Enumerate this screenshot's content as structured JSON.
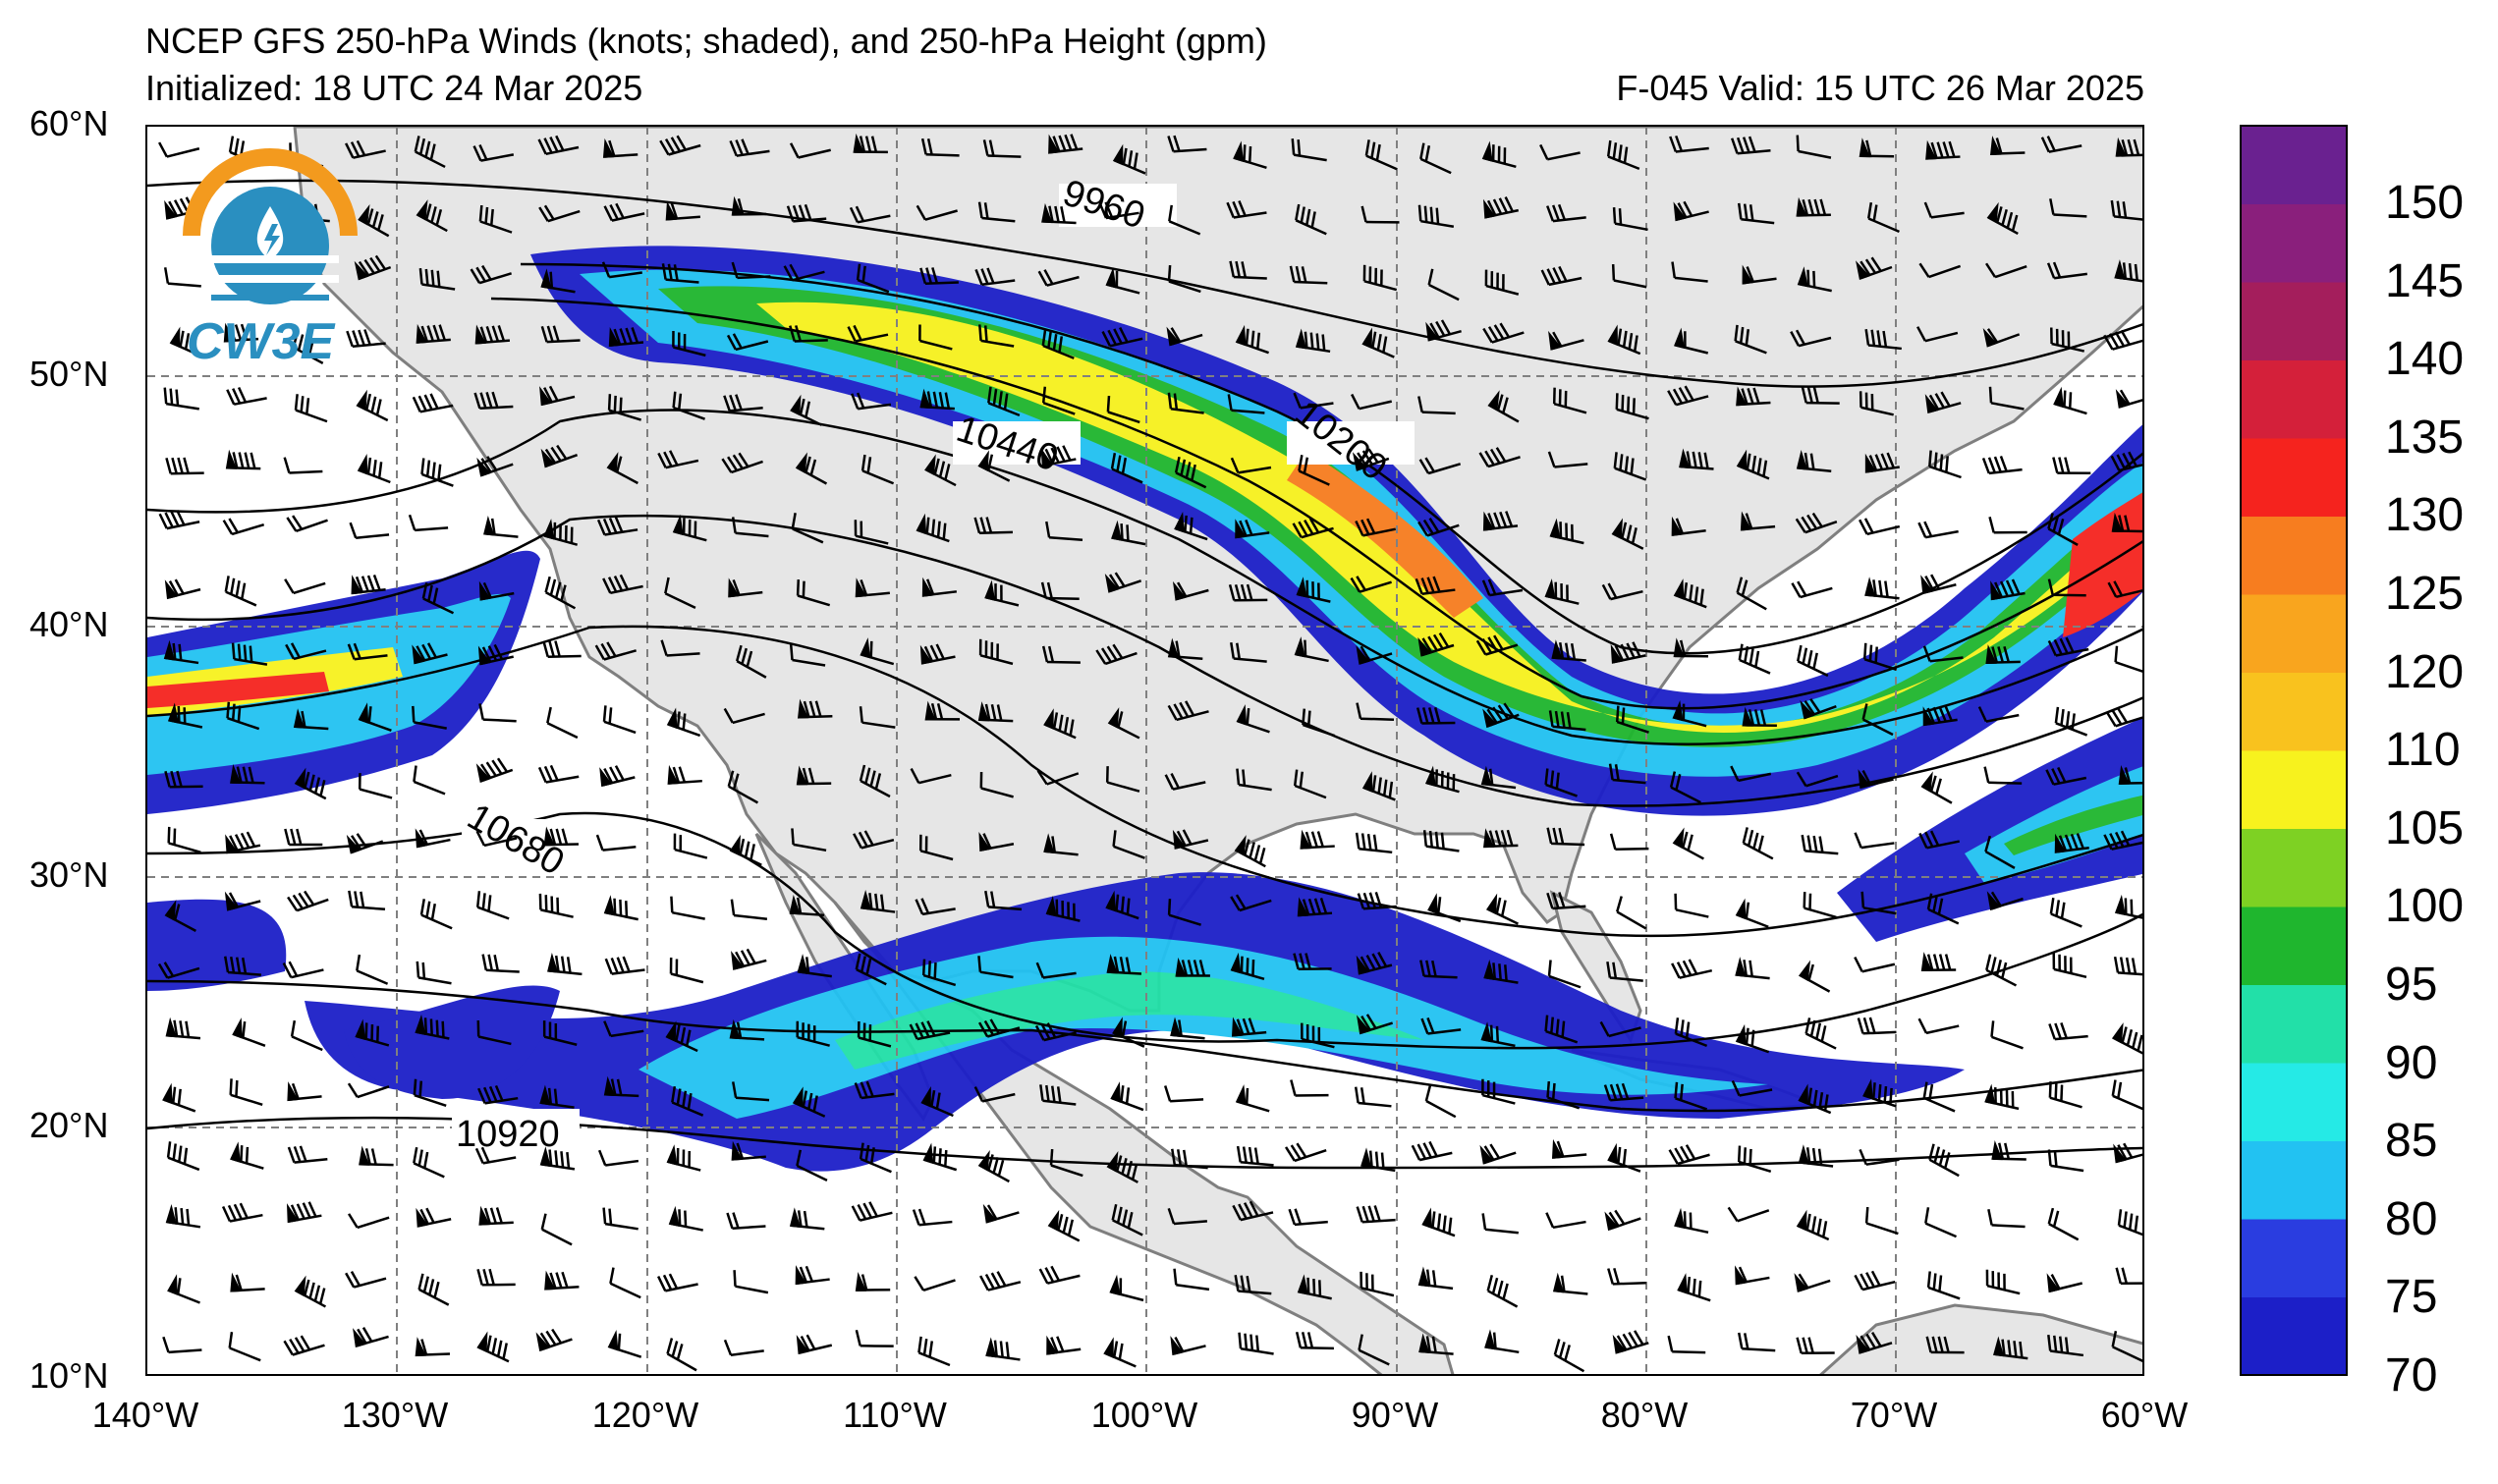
{
  "header": {
    "title": "NCEP GFS 250-hPa Winds (knots; shaded), and 250-hPa Height (gpm)",
    "initialized": "Initialized: 18 UTC 24 Mar 2025",
    "valid": "F-045  Valid: 15 UTC 26 Mar 2025"
  },
  "logo": {
    "text": "CW3E",
    "icon": "water-drop-lightning-icon"
  },
  "axes": {
    "lat_labels": [
      "60°N",
      "50°N",
      "40°N",
      "30°N",
      "20°N",
      "10°N"
    ],
    "lon_labels": [
      "140°W",
      "130°W",
      "120°W",
      "110°W",
      "100°W",
      "90°W",
      "80°W",
      "70°W",
      "60°W"
    ],
    "lat_range": [
      10,
      60
    ],
    "lon_range": [
      -140,
      -60
    ]
  },
  "contours": {
    "labels": [
      "9960",
      "10200",
      "10440",
      "10680",
      "10920"
    ]
  },
  "colorbar": {
    "labels": [
      "150",
      "145",
      "140",
      "135",
      "130",
      "125",
      "120",
      "110",
      "105",
      "100",
      "95",
      "90",
      "85",
      "80",
      "75",
      "70"
    ],
    "colors": [
      "#1c1fc8",
      "#2a3de0",
      "#22c2f2",
      "#25eae6",
      "#22e0a8",
      "#1fb62e",
      "#7ed123",
      "#f7f21e",
      "#f9c21e",
      "#f9a51e",
      "#f77d1f",
      "#f5231e",
      "#d4203a",
      "#a41e5c",
      "#8a1f7c",
      "#6a2190"
    ]
  },
  "map_colors": {
    "land": "#e6e6e6",
    "ocean": "#ffffff",
    "coast": "#7f7f7f",
    "grid": "#808080"
  }
}
